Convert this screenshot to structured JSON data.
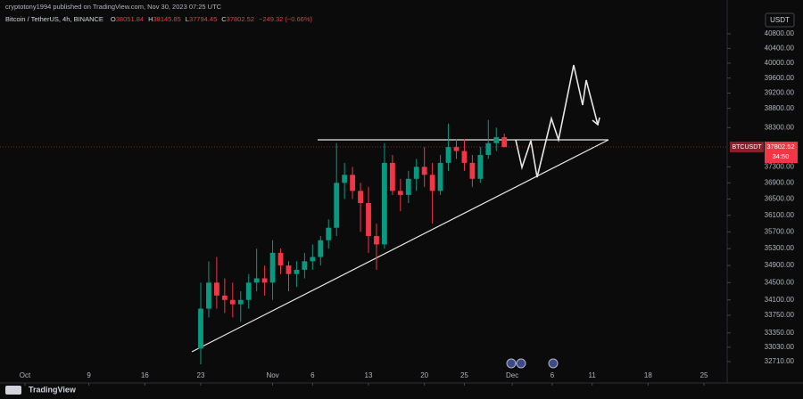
{
  "header": {
    "published": "cryptotony1994 published on TradingView.com, Nov 30, 2023 07:25 UTC",
    "currency": "USDT",
    "brand": "TradingView"
  },
  "chart_data": {
    "type": "candlestick",
    "title": "Bitcoin / TetherUS, 4h, BINANCE",
    "ohlc_labels": [
      "O",
      "H",
      "L",
      "C"
    ],
    "change": "−249.32 (−0.66%)",
    "symbol": "BTCUSDT",
    "last_price": 37802.52,
    "countdown": "34:50",
    "log_scale": true,
    "up_color": "#089981",
    "down_color": "#f23645",
    "x": [
      22,
      23,
      24,
      25,
      26,
      27,
      28,
      29,
      30,
      31,
      32,
      33,
      34,
      35,
      36,
      37,
      38,
      39,
      40,
      41,
      42,
      43,
      44,
      45,
      46,
      47,
      48,
      49,
      50,
      51,
      52,
      53,
      54,
      55,
      56,
      57,
      58,
      59,
      60
    ],
    "open": [
      33000,
      33900,
      34500,
      34200,
      34100,
      34000,
      34100,
      34500,
      34600,
      34500,
      35200,
      34900,
      34700,
      34800,
      35000,
      35100,
      35500,
      35800,
      36900,
      37100,
      36700,
      36400,
      35600,
      35400,
      37400,
      36700,
      36600,
      37000,
      37300,
      37100,
      36700,
      37400,
      37800,
      37700,
      37400,
      37000,
      37600,
      37900,
      38051.84
    ],
    "high": [
      34500,
      35000,
      35100,
      34600,
      34500,
      34300,
      34700,
      35300,
      34900,
      35500,
      35300,
      35000,
      35000,
      35200,
      35400,
      35600,
      36000,
      37900,
      37400,
      37300,
      36900,
      36800,
      35900,
      37900,
      37600,
      37000,
      37200,
      37500,
      37800,
      37400,
      37600,
      38400,
      38000,
      38000,
      37600,
      37800,
      38500,
      38300,
      38145.85
    ],
    "low": [
      32650,
      33700,
      33900,
      33800,
      33700,
      33600,
      33900,
      34300,
      34200,
      34100,
      34700,
      34300,
      34400,
      34600,
      34800,
      34900,
      35300,
      35600,
      36500,
      36500,
      35700,
      35200,
      34800,
      35300,
      36600,
      36200,
      36400,
      36700,
      36800,
      35900,
      36600,
      37200,
      37500,
      37200,
      36800,
      36900,
      37500,
      37700,
      37794.45
    ],
    "close": [
      33900,
      34500,
      34200,
      34100,
      34000,
      34100,
      34500,
      34600,
      34500,
      35200,
      34900,
      34700,
      34800,
      35000,
      35100,
      35500,
      35800,
      36900,
      37100,
      36700,
      36400,
      35600,
      35400,
      37400,
      36700,
      36600,
      37000,
      37300,
      37100,
      36700,
      37400,
      37800,
      37700,
      37400,
      37000,
      37600,
      37900,
      38051.84,
      37802.52
    ],
    "xlim": [
      -3.13,
      87.9
    ],
    "xticks": [
      {
        "value": 0,
        "label": "Oct"
      },
      {
        "value": 8,
        "label": "9"
      },
      {
        "value": 15,
        "label": "16"
      },
      {
        "value": 22,
        "label": "23"
      },
      {
        "value": 31,
        "label": "Nov"
      },
      {
        "value": 36,
        "label": "6"
      },
      {
        "value": 43,
        "label": "13"
      },
      {
        "value": 50,
        "label": "20"
      },
      {
        "value": 55,
        "label": "25"
      },
      {
        "value": 61,
        "label": "Dec"
      },
      {
        "value": 66,
        "label": "6"
      },
      {
        "value": 71,
        "label": "11"
      },
      {
        "value": 78,
        "label": "18"
      },
      {
        "value": 85,
        "label": "25"
      }
    ],
    "ylim": [
      32535,
      41740
    ],
    "yticks": [
      {
        "value": 40800,
        "label": "40800.00"
      },
      {
        "value": 40400,
        "label": "40400.00"
      },
      {
        "value": 40000,
        "label": "40000.00"
      },
      {
        "value": 39600,
        "label": "39600.00"
      },
      {
        "value": 39200,
        "label": "39200.00"
      },
      {
        "value": 38800,
        "label": "38800.00"
      },
      {
        "value": 38300,
        "label": "38300.00"
      },
      {
        "value": 37300,
        "label": "37300.00"
      },
      {
        "value": 36900,
        "label": "36900.00"
      },
      {
        "value": 36500,
        "label": "36500.00"
      },
      {
        "value": 36100,
        "label": "36100.00"
      },
      {
        "value": 35700,
        "label": "35700.00"
      },
      {
        "value": 35300,
        "label": "35300.00"
      },
      {
        "value": 34900,
        "label": "34900.00"
      },
      {
        "value": 34500,
        "label": "34500.00"
      },
      {
        "value": 34100,
        "label": "34100.00"
      },
      {
        "value": 33750,
        "label": "33750.00"
      },
      {
        "value": 33350,
        "label": "33350.00"
      },
      {
        "value": 33030,
        "label": "33030.00"
      },
      {
        "value": 32710,
        "label": "32710.00"
      }
    ]
  }
}
